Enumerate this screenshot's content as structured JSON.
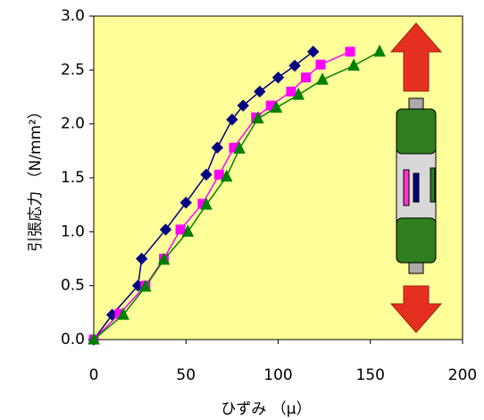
{
  "chart_data": {
    "type": "line",
    "x_label": "ひずみ （μ）",
    "y_label": "引張応力 （N/mm²）",
    "xlim": [
      0,
      200
    ],
    "xticks": [
      0,
      50,
      100,
      150,
      200
    ],
    "ylim": [
      0,
      3
    ],
    "yticks": [
      {
        "value": 0,
        "label": "0.0"
      },
      {
        "value": 0.5,
        "label": "0.5"
      },
      {
        "value": 1,
        "label": "1.0"
      },
      {
        "value": 1.5,
        "label": "1.5"
      },
      {
        "value": 2,
        "label": "2.0"
      },
      {
        "value": 2.5,
        "label": "2.5"
      },
      {
        "value": 3,
        "label": "3.0"
      }
    ],
    "background": "#ffff99",
    "series": [
      {
        "color": "#000080",
        "marker": "diamond",
        "x": [
          0,
          10,
          24,
          26,
          39,
          50,
          61,
          67,
          75,
          81,
          90,
          100,
          109,
          119
        ],
        "values": [
          0,
          0.23,
          0.5,
          0.75,
          1.02,
          1.27,
          1.53,
          1.78,
          2.04,
          2.17,
          2.3,
          2.43,
          2.54,
          2.67
        ]
      },
      {
        "color": "#ff00ff",
        "marker": "square",
        "x": [
          0,
          14,
          28,
          38,
          47,
          59,
          68,
          76,
          88,
          96,
          107,
          115,
          123,
          139
        ],
        "values": [
          0,
          0.24,
          0.5,
          0.75,
          1.02,
          1.26,
          1.53,
          1.78,
          2.06,
          2.17,
          2.3,
          2.43,
          2.55,
          2.67
        ]
      },
      {
        "color": "#008000",
        "marker": "triangle",
        "x": [
          0,
          16,
          28,
          38,
          51,
          61,
          72,
          79,
          89,
          99,
          111,
          124,
          141,
          155
        ],
        "values": [
          0,
          0.23,
          0.49,
          0.74,
          1.0,
          1.25,
          1.51,
          1.77,
          2.05,
          2.15,
          2.27,
          2.41,
          2.54,
          2.67
        ]
      }
    ]
  }
}
